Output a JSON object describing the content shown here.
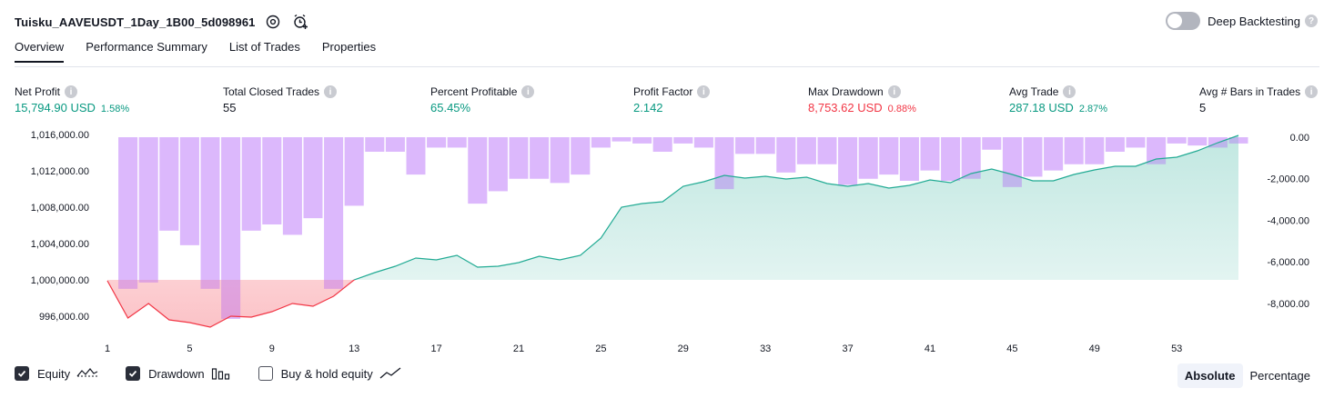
{
  "header": {
    "title": "Tuisku_AAVEUSDT_1Day_1B00_5d098961"
  },
  "deep_backtesting": {
    "label": "Deep Backtesting",
    "help": "?"
  },
  "tabs": [
    "Overview",
    "Performance Summary",
    "List of Trades",
    "Properties"
  ],
  "metrics": [
    {
      "label": "Net Profit",
      "value": "15,794.90 USD",
      "pct": "1.58%",
      "tone": "green"
    },
    {
      "label": "Total Closed Trades",
      "value": "55",
      "pct": "",
      "tone": "neutral"
    },
    {
      "label": "Percent Profitable",
      "value": "65.45%",
      "pct": "",
      "tone": "green"
    },
    {
      "label": "Profit Factor",
      "value": "2.142",
      "pct": "",
      "tone": "green"
    },
    {
      "label": "Max Drawdown",
      "value": "8,753.62 USD",
      "pct": "0.88%",
      "tone": "red"
    },
    {
      "label": "Avg Trade",
      "value": "287.18 USD",
      "pct": "2.87%",
      "tone": "green"
    },
    {
      "label": "Avg # Bars in Trades",
      "value": "5",
      "pct": "",
      "tone": "neutral"
    }
  ],
  "legend": {
    "equity": "Equity",
    "drawdown": "Drawdown",
    "buy_hold": "Buy & hold equity"
  },
  "modes": {
    "absolute": "Absolute",
    "percentage": "Percentage"
  },
  "colors": {
    "equity_up": "#22ab94",
    "equity_down": "#f23645",
    "drawdown": "#dcb8fc",
    "drawdown_overlap": "#9aa0d6",
    "positive": "#089981",
    "negative": "#f23645"
  },
  "chart_data": {
    "type": "area",
    "x_ticks": [
      "1",
      "5",
      "9",
      "13",
      "17",
      "21",
      "25",
      "29",
      "33",
      "37",
      "41",
      "45",
      "49",
      "53"
    ],
    "y_left_ticks": [
      "1,016,000.00",
      "1,012,000.00",
      "1,008,000.00",
      "1,004,000.00",
      "1,000,000.00",
      "996,000.00"
    ],
    "y_right_ticks": [
      "0.00",
      "-2,000.00",
      "-4,000.00",
      "-6,000.00",
      "-8,000.00"
    ],
    "equity_baseline": 1000000,
    "ylim_left": [
      994000,
      1016000
    ],
    "ylim_right": [
      -8753.62,
      0
    ],
    "series": [
      {
        "name": "Equity",
        "x": [
          1,
          2,
          3,
          4,
          5,
          6,
          7,
          8,
          9,
          10,
          11,
          12,
          13,
          14,
          15,
          16,
          17,
          18,
          19,
          20,
          21,
          22,
          23,
          24,
          25,
          26,
          27,
          28,
          29,
          30,
          31,
          32,
          33,
          34,
          35,
          36,
          37,
          38,
          39,
          40,
          41,
          42,
          43,
          44,
          45,
          46,
          47,
          48,
          49,
          50,
          51,
          52,
          53,
          54,
          55,
          56
        ],
        "values": [
          999900,
          995800,
          997400,
          995600,
          995300,
          994800,
          996000,
          995900,
          996500,
          997400,
          997100,
          998200,
          1000000,
          1000800,
          1001500,
          1002400,
          1002200,
          1002700,
          1001400,
          1001500,
          1001900,
          1002600,
          1002200,
          1002700,
          1004600,
          1008000,
          1008400,
          1008600,
          1010300,
          1010800,
          1011500,
          1011200,
          1011400,
          1011100,
          1011300,
          1010600,
          1010300,
          1010600,
          1010100,
          1010400,
          1011000,
          1010700,
          1011700,
          1012200,
          1011600,
          1010900,
          1010900,
          1011600,
          1012100,
          1012500,
          1012500,
          1013300,
          1013500,
          1014200,
          1015100,
          1015900
        ]
      },
      {
        "name": "Drawdown",
        "x": [
          2,
          3,
          4,
          5,
          6,
          7,
          8,
          9,
          10,
          11,
          12,
          13,
          14,
          15,
          16,
          17,
          18,
          19,
          20,
          21,
          22,
          23,
          24,
          25,
          26,
          27,
          28,
          29,
          30,
          31,
          32,
          33,
          34,
          35,
          36,
          37,
          38,
          39,
          40,
          41,
          42,
          43,
          44,
          45,
          46,
          47,
          48,
          49,
          50,
          51,
          52,
          53,
          54,
          55,
          56
        ],
        "values": [
          -7300,
          -7000,
          -4500,
          -5200,
          -7300,
          -8750,
          -4500,
          -4200,
          -4700,
          -3900,
          -7300,
          -3300,
          -700,
          -700,
          -1800,
          -500,
          -500,
          -3200,
          -2600,
          -2000,
          -2000,
          -2200,
          -1800,
          -500,
          -200,
          -300,
          -700,
          -300,
          -500,
          -2500,
          -800,
          -800,
          -1700,
          -1300,
          -1300,
          -2300,
          -2000,
          -1800,
          -2100,
          -1600,
          -2100,
          -2000,
          -600,
          -2400,
          -1900,
          -1600,
          -1300,
          -1300,
          -700,
          -500,
          -1300,
          -300,
          -400,
          -500,
          -300
        ]
      }
    ]
  }
}
